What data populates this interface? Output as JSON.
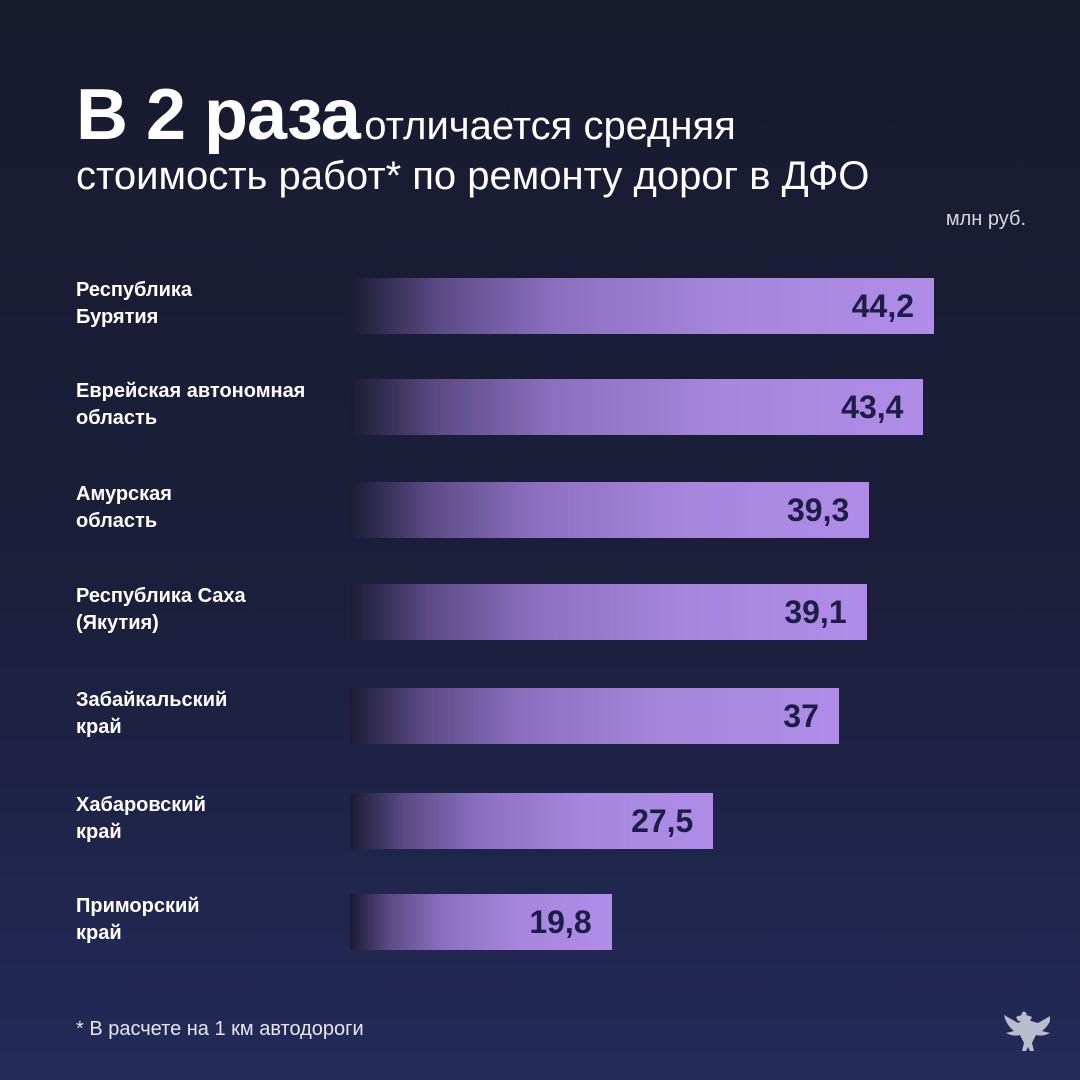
{
  "title": {
    "highlight": "В 2 раза",
    "rest": "отличается средняя",
    "line2": "стоимость работ* по ремонту дорог в ДФО"
  },
  "chart_data": {
    "type": "bar",
    "orientation": "horizontal",
    "unit": "млн руб.",
    "categories": [
      "Республика Бурятия",
      "Еврейская автономная область",
      "Амурская область",
      "Республика Саха (Якутия)",
      "Забайкальский край",
      "Хабаровский край",
      "Приморский край"
    ],
    "category_lines": [
      [
        "Республика",
        "Бурятия"
      ],
      [
        "Еврейская автономная",
        "область"
      ],
      [
        "Амурская",
        "область"
      ],
      [
        "Республика Саха",
        "(Якутия)"
      ],
      [
        "Забайкальский",
        "край"
      ],
      [
        "Хабаровский",
        "край"
      ],
      [
        "Приморский",
        "край"
      ]
    ],
    "values": [
      44.2,
      43.4,
      39.3,
      39.1,
      37,
      27.5,
      19.8
    ],
    "value_labels": [
      "44,2",
      "43,4",
      "39,3",
      "39,1",
      "37",
      "27,5",
      "19,8"
    ],
    "xlim": [
      0,
      44.2
    ],
    "bar_color": "#b08ce8"
  },
  "footnote": "*  В расчете на 1 км автодороги",
  "emblem": "double-headed-eagle-emblem"
}
